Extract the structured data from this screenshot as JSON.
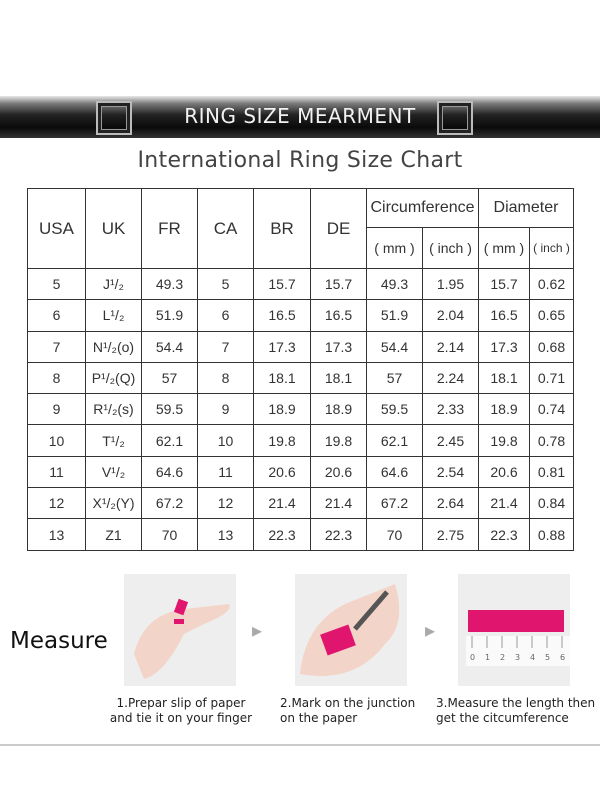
{
  "banner": {
    "title": "RING SIZE MEARMENT"
  },
  "title": "International Ring Size Chart",
  "table": {
    "headers": [
      "USA",
      "UK",
      "FR",
      "CA",
      "BR",
      "DE"
    ],
    "group_headers": [
      "Circumference",
      "Diameter"
    ],
    "unit_headers": [
      "( mm )",
      "( inch )",
      "( mm )",
      "( inch )"
    ],
    "rows": [
      [
        "5",
        "J¹/₂",
        "49.3",
        "5",
        "15.7",
        "15.7",
        "49.3",
        "1.95",
        "15.7",
        "0.62"
      ],
      [
        "6",
        "L¹/₂",
        "51.9",
        "6",
        "16.5",
        "16.5",
        "51.9",
        "2.04",
        "16.5",
        "0.65"
      ],
      [
        "7",
        "N¹/₂(o)",
        "54.4",
        "7",
        "17.3",
        "17.3",
        "54.4",
        "2.14",
        "17.3",
        "0.68"
      ],
      [
        "8",
        "P¹/₂(Q)",
        "57",
        "8",
        "18.1",
        "18.1",
        "57",
        "2.24",
        "18.1",
        "0.71"
      ],
      [
        "9",
        "R¹/₂(s)",
        "59.5",
        "9",
        "18.9",
        "18.9",
        "59.5",
        "2.33",
        "18.9",
        "0.74"
      ],
      [
        "10",
        "T¹/₂",
        "62.1",
        "10",
        "19.8",
        "19.8",
        "62.1",
        "2.45",
        "19.8",
        "0.78"
      ],
      [
        "11",
        "V¹/₂",
        "64.6",
        "11",
        "20.6",
        "20.6",
        "64.6",
        "2.54",
        "20.6",
        "0.81"
      ],
      [
        "12",
        "X¹/₂(Y)",
        "67.2",
        "12",
        "21.4",
        "21.4",
        "67.2",
        "2.64",
        "21.4",
        "0.84"
      ],
      [
        "13",
        "Z1",
        "70",
        "13",
        "22.3",
        "22.3",
        "70",
        "2.75",
        "22.3",
        "0.88"
      ]
    ]
  },
  "measure": {
    "label": "Measure",
    "steps": [
      {
        "line1": "1.Prepar slip of paper",
        "line2": "and tie it on your finger"
      },
      {
        "line1": "2.Mark on the junction",
        "line2": "on the paper"
      },
      {
        "line1": "3.Measure the length then",
        "line2": "get the citcumference"
      }
    ],
    "ruler_ticks": [
      "0",
      "1",
      "2",
      "3",
      "4",
      "5",
      "6"
    ],
    "accent": "#e0156e"
  }
}
